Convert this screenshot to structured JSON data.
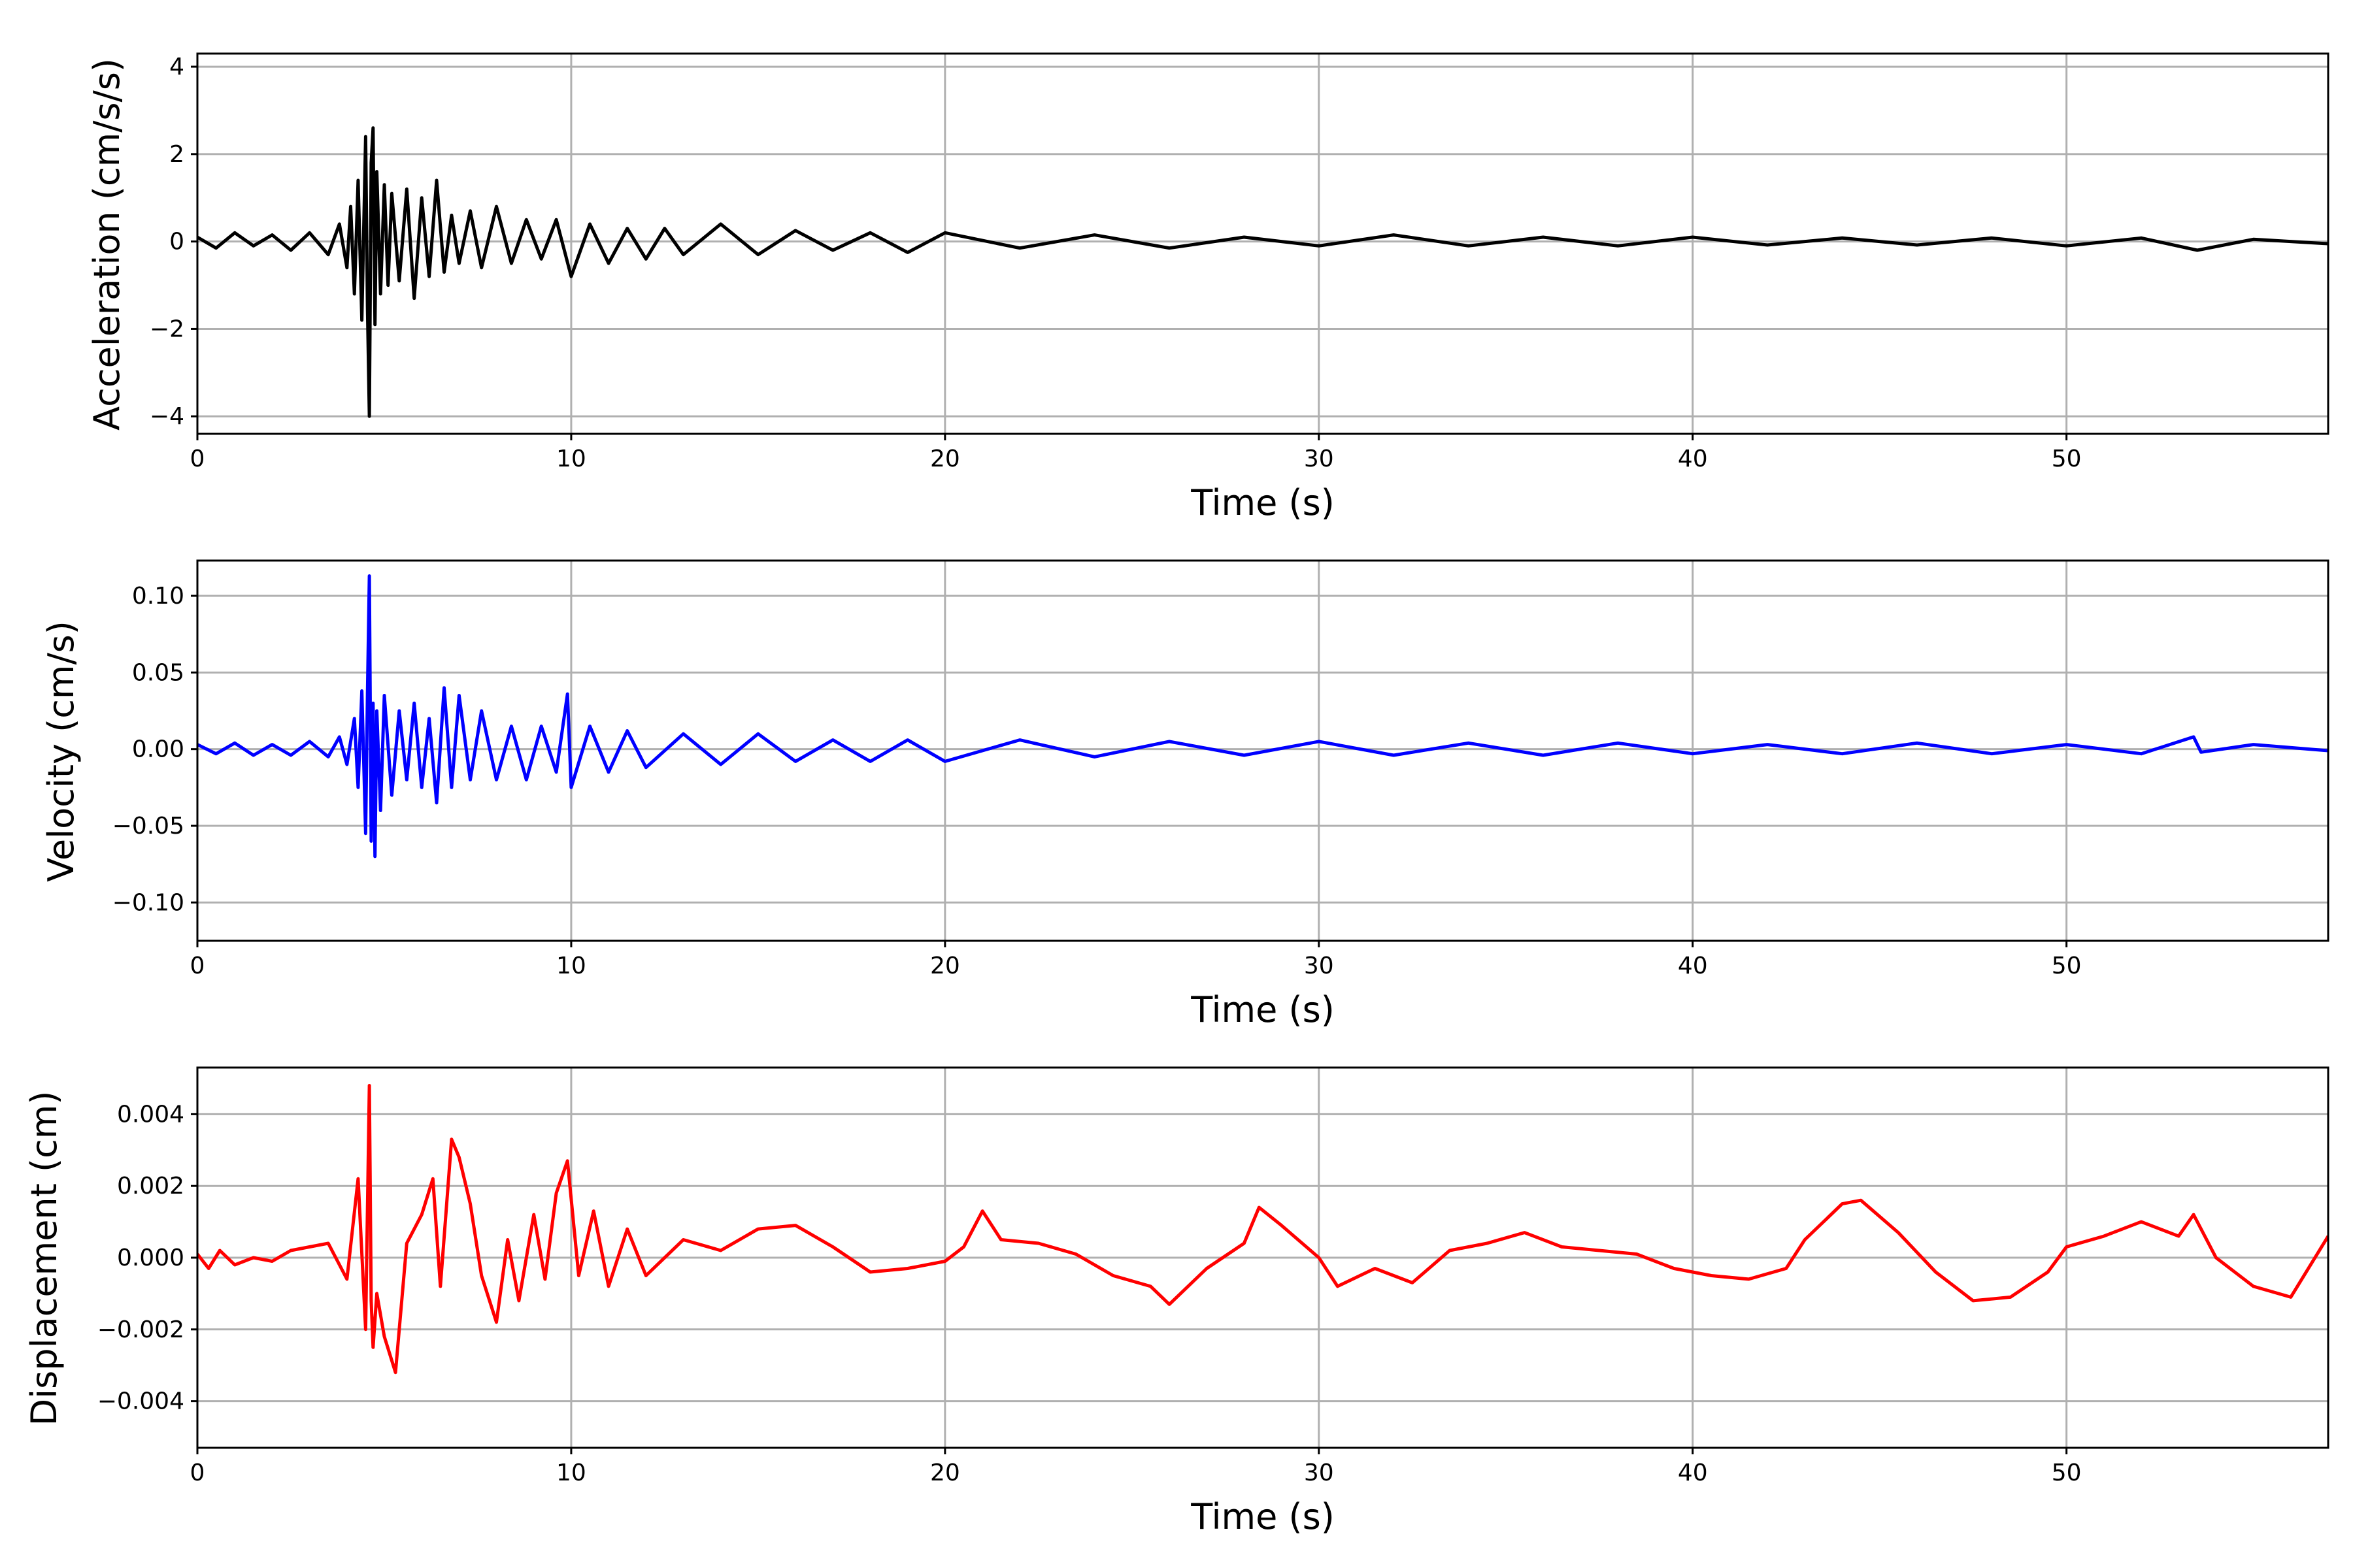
{
  "chart_data": [
    {
      "type": "line",
      "ylabel": "Acceleration (cm/s/s)",
      "xlabel": "Time (s)",
      "xlim": [
        0,
        57
      ],
      "ylim": [
        -4.4,
        4.3
      ],
      "xticks": [
        0,
        10,
        20,
        30,
        40,
        50
      ],
      "xtick_labels": [
        "0",
        "10",
        "20",
        "30",
        "40",
        "50"
      ],
      "yticks": [
        -4,
        -2,
        0,
        2,
        4
      ],
      "ytick_labels": [
        "−4",
        "−2",
        "0",
        "2",
        "4"
      ],
      "grid": true,
      "series": [
        {
          "color": "#000000",
          "x": [
            0,
            0.5,
            1,
            1.5,
            2,
            2.5,
            3,
            3.5,
            3.8,
            4.0,
            4.1,
            4.2,
            4.3,
            4.4,
            4.5,
            4.55,
            4.6,
            4.65,
            4.7,
            4.75,
            4.8,
            4.9,
            5.0,
            5.1,
            5.2,
            5.4,
            5.6,
            5.8,
            6.0,
            6.2,
            6.4,
            6.6,
            6.8,
            7.0,
            7.3,
            7.6,
            8.0,
            8.4,
            8.8,
            9.2,
            9.6,
            10.0,
            10.5,
            11,
            11.5,
            12,
            12.5,
            13,
            14,
            15,
            16,
            17,
            18,
            19,
            20,
            22,
            24,
            26,
            28,
            30,
            32,
            34,
            36,
            38,
            40,
            42,
            44,
            46,
            48,
            50,
            52,
            53.5,
            55,
            57
          ],
          "y": [
            0.1,
            -0.15,
            0.2,
            -0.1,
            0.15,
            -0.2,
            0.2,
            -0.3,
            0.4,
            -0.6,
            0.8,
            -1.2,
            1.4,
            -1.8,
            2.4,
            -1.5,
            -4.0,
            1.8,
            2.6,
            -1.9,
            1.6,
            -1.2,
            1.3,
            -1.0,
            1.1,
            -0.9,
            1.2,
            -1.3,
            1.0,
            -0.8,
            1.4,
            -0.7,
            0.6,
            -0.5,
            0.7,
            -0.6,
            0.8,
            -0.5,
            0.5,
            -0.4,
            0.5,
            -0.8,
            0.4,
            -0.5,
            0.3,
            -0.4,
            0.3,
            -0.3,
            0.4,
            -0.3,
            0.25,
            -0.2,
            0.2,
            -0.25,
            0.2,
            -0.15,
            0.15,
            -0.15,
            0.1,
            -0.1,
            0.15,
            -0.1,
            0.1,
            -0.1,
            0.1,
            -0.08,
            0.08,
            -0.08,
            0.08,
            -0.1,
            0.08,
            -0.2,
            0.05,
            -0.05
          ]
        }
      ]
    },
    {
      "type": "line",
      "ylabel": "Velocity (cm/s)",
      "xlabel": "Time (s)",
      "xlim": [
        0,
        57
      ],
      "ylim": [
        -0.125,
        0.123
      ],
      "xticks": [
        0,
        10,
        20,
        30,
        40,
        50
      ],
      "xtick_labels": [
        "0",
        "10",
        "20",
        "30",
        "40",
        "50"
      ],
      "yticks": [
        -0.1,
        -0.05,
        0,
        0.05,
        0.1
      ],
      "ytick_labels": [
        "−0.10",
        "−0.05",
        "0.00",
        "0.05",
        "0.10"
      ],
      "grid": true,
      "series": [
        {
          "color": "#0000ff",
          "x": [
            0,
            0.5,
            1,
            1.5,
            2,
            2.5,
            3,
            3.5,
            3.8,
            4.0,
            4.2,
            4.3,
            4.4,
            4.5,
            4.55,
            4.6,
            4.65,
            4.7,
            4.75,
            4.8,
            4.9,
            5.0,
            5.2,
            5.4,
            5.6,
            5.8,
            6.0,
            6.2,
            6.4,
            6.6,
            6.8,
            7.0,
            7.3,
            7.6,
            8.0,
            8.4,
            8.8,
            9.2,
            9.6,
            9.9,
            10.0,
            10.5,
            11,
            11.5,
            12,
            13,
            14,
            15,
            16,
            17,
            18,
            19,
            20,
            22,
            24,
            26,
            28,
            30,
            32,
            34,
            36,
            38,
            40,
            42,
            44,
            46,
            48,
            50,
            52,
            53.4,
            53.6,
            55,
            57
          ],
          "y": [
            0.003,
            -0.003,
            0.004,
            -0.004,
            0.003,
            -0.004,
            0.005,
            -0.005,
            0.008,
            -0.01,
            0.02,
            -0.025,
            0.038,
            -0.055,
            0.036,
            0.113,
            -0.06,
            0.03,
            -0.07,
            0.025,
            -0.04,
            0.035,
            -0.03,
            0.025,
            -0.02,
            0.03,
            -0.025,
            0.02,
            -0.035,
            0.04,
            -0.025,
            0.035,
            -0.02,
            0.025,
            -0.02,
            0.015,
            -0.02,
            0.015,
            -0.015,
            0.036,
            -0.025,
            0.015,
            -0.015,
            0.012,
            -0.012,
            0.01,
            -0.01,
            0.01,
            -0.008,
            0.006,
            -0.008,
            0.006,
            -0.008,
            0.006,
            -0.005,
            0.005,
            -0.004,
            0.005,
            -0.004,
            0.004,
            -0.004,
            0.004,
            -0.003,
            0.003,
            -0.003,
            0.004,
            -0.003,
            0.003,
            -0.003,
            0.008,
            -0.002,
            0.003,
            -0.001
          ]
        }
      ]
    },
    {
      "type": "line",
      "ylabel": "Displacement (cm)",
      "xlabel": "Time (s)",
      "xlim": [
        0,
        57
      ],
      "ylim": [
        -0.0053,
        0.0053
      ],
      "xticks": [
        0,
        10,
        20,
        30,
        40,
        50
      ],
      "xtick_labels": [
        "0",
        "10",
        "20",
        "30",
        "40",
        "50"
      ],
      "yticks": [
        -0.004,
        -0.002,
        0,
        0.002,
        0.004
      ],
      "ytick_labels": [
        "−0.004",
        "−0.002",
        "0.000",
        "0.002",
        "0.004"
      ],
      "grid": true,
      "series": [
        {
          "color": "#ff0000",
          "x": [
            0,
            0.3,
            0.6,
            1,
            1.5,
            2,
            2.5,
            3,
            3.5,
            4.0,
            4.3,
            4.5,
            4.6,
            4.65,
            4.7,
            4.8,
            5.0,
            5.3,
            5.6,
            6.0,
            6.3,
            6.5,
            6.8,
            7.0,
            7.3,
            7.6,
            8.0,
            8.3,
            8.6,
            9.0,
            9.3,
            9.6,
            9.9,
            10.2,
            10.6,
            11.0,
            11.5,
            12,
            13,
            14,
            15,
            16,
            17,
            18,
            19,
            20,
            20.5,
            21.0,
            21.5,
            22.5,
            23.5,
            24.5,
            25.5,
            26,
            27,
            28,
            28.4,
            29,
            30,
            30.5,
            31.5,
            32.5,
            33.5,
            34.5,
            35.5,
            36.5,
            37.5,
            38.5,
            39.5,
            40.5,
            41.5,
            42.5,
            43.0,
            44.0,
            44.5,
            45.5,
            46.5,
            47.5,
            48.5,
            49.5,
            50.0,
            51.0,
            52.0,
            53.0,
            53.4,
            54.0,
            55.0,
            56.0,
            57.0
          ],
          "y": [
            0.0001,
            -0.0003,
            0.0002,
            -0.0002,
            0.0,
            -0.0001,
            0.0002,
            0.0003,
            0.0004,
            -0.0006,
            0.0022,
            -0.002,
            0.0048,
            -0.0012,
            -0.0025,
            -0.001,
            -0.0022,
            -0.0032,
            0.0004,
            0.0012,
            0.0022,
            -0.0008,
            0.0033,
            0.0028,
            0.0015,
            -0.0005,
            -0.0018,
            0.0005,
            -0.0012,
            0.0012,
            -0.0006,
            0.0018,
            0.0027,
            -0.0005,
            0.0013,
            -0.0008,
            0.0008,
            -0.0005,
            0.0005,
            0.0002,
            0.0008,
            0.0009,
            0.0003,
            -0.0004,
            -0.0003,
            -0.0001,
            0.0003,
            0.0013,
            0.0005,
            0.0004,
            0.0001,
            -0.0005,
            -0.0008,
            -0.0013,
            -0.0003,
            0.0004,
            0.0014,
            0.0009,
            0.0,
            -0.0008,
            -0.0003,
            -0.0007,
            0.0002,
            0.0004,
            0.0007,
            0.0003,
            0.0002,
            0.0001,
            -0.0003,
            -0.0005,
            -0.0006,
            -0.0003,
            0.0005,
            0.0015,
            0.0016,
            0.0007,
            -0.0004,
            -0.0012,
            -0.0011,
            -0.0004,
            0.0003,
            0.0006,
            0.001,
            0.0006,
            0.0012,
            0.0,
            -0.0008,
            -0.0011,
            0.0006
          ]
        }
      ]
    }
  ]
}
